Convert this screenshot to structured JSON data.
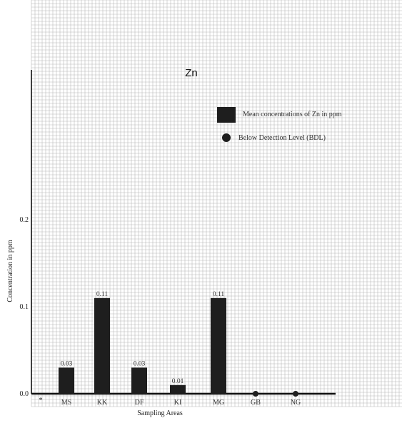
{
  "chart_data": {
    "type": "bar",
    "title": "Zn",
    "xlabel": "Sampling Areas",
    "ylabel": "Concentration in ppm",
    "categories": [
      "MS",
      "KK",
      "DF",
      "KI",
      "MG",
      "GB",
      "NG"
    ],
    "values": [
      0.03,
      0.11,
      0.03,
      0.01,
      0.11,
      0,
      0
    ],
    "value_labels": [
      "0.03",
      "0.11",
      "0.03",
      "0.01",
      "0.11",
      "",
      ""
    ],
    "bdl": [
      false,
      false,
      false,
      false,
      false,
      true,
      true
    ],
    "yticks": [
      "0.0",
      "0.1",
      "0.2"
    ],
    "ylim": [
      0,
      0.45
    ],
    "origin_marker": "*",
    "grid": true,
    "legend": {
      "position": "top-right",
      "items": [
        {
          "marker": "square",
          "label": "Mean concentrations of Zn in ppm"
        },
        {
          "marker": "circle",
          "label": "Below Detection Level (BDL)"
        }
      ]
    },
    "colors": {
      "bar": "#1e1e1e",
      "grid": "#b8b8b8",
      "background": "#ffffff"
    }
  }
}
